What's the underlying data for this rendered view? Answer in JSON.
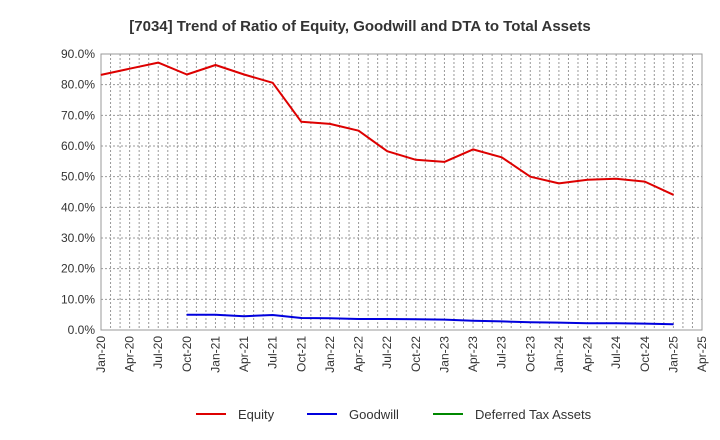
{
  "chart_data": {
    "type": "line",
    "title": "[7034]  Trend of Ratio of Equity, Goodwill and DTA to Total Assets",
    "xlabel": "",
    "ylabel": "",
    "ylim": [
      0,
      90
    ],
    "grid": true,
    "legend_position": "bottom",
    "y_ticks": [
      "0.0%",
      "10.0%",
      "20.0%",
      "30.0%",
      "40.0%",
      "50.0%",
      "60.0%",
      "70.0%",
      "80.0%",
      "90.0%"
    ],
    "x_ticks": [
      "Jan-20",
      "Apr-20",
      "Jul-20",
      "Oct-20",
      "Jan-21",
      "Apr-21",
      "Jul-21",
      "Oct-21",
      "Jan-22",
      "Apr-22",
      "Jul-22",
      "Oct-22",
      "Jan-23",
      "Apr-23",
      "Jul-23",
      "Oct-23",
      "Jan-24",
      "Apr-24",
      "Jul-24",
      "Oct-24",
      "Jan-25",
      "Apr-25"
    ],
    "series": [
      {
        "name": "Equity",
        "color": "#dd0000",
        "values": [
          83.2,
          85.2,
          87.2,
          83.3,
          86.4,
          83.3,
          80.6,
          67.9,
          67.2,
          65.0,
          58.3,
          55.5,
          54.8,
          58.9,
          56.3,
          50.0,
          47.8,
          49.0,
          49.3,
          48.4,
          44.1
        ]
      },
      {
        "name": "Goodwill",
        "color": "#0000dd",
        "values": [
          null,
          null,
          null,
          5.0,
          5.0,
          4.5,
          4.9,
          3.9,
          3.8,
          3.6,
          3.6,
          3.5,
          3.4,
          3.0,
          2.8,
          2.5,
          2.4,
          2.2,
          2.2,
          2.1,
          1.9
        ]
      },
      {
        "name": "Deferred Tax Assets",
        "color": "#008800",
        "values": []
      }
    ]
  }
}
